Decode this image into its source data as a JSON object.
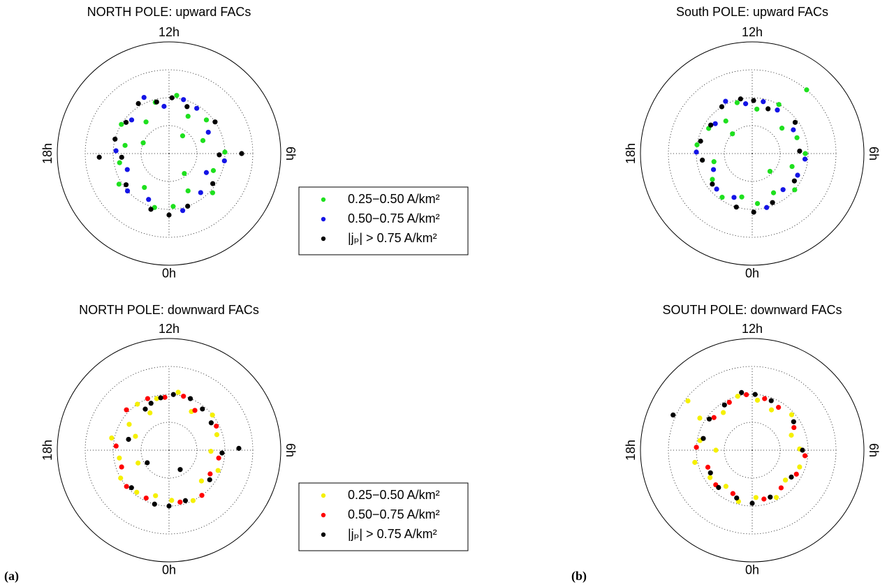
{
  "chart_data": [
    {
      "type": "scatter",
      "projection": "polar",
      "title": "NORTH POLE: upward FACs",
      "xlim": [
        0,
        24
      ],
      "xticks": [
        {
          "value": 12,
          "label": "12h"
        },
        {
          "value": 6,
          "label": "6h"
        },
        {
          "value": 0,
          "label": "0h"
        },
        {
          "value": 18,
          "label": "18h"
        }
      ],
      "ylim": [
        0,
        40
      ],
      "yticks": [
        10,
        20,
        30
      ],
      "grid": true,
      "legend": "right",
      "series": [
        {
          "name": "0.25−0.50 A/km²",
          "color": "#1ee01e",
          "x": [
            0.3,
            1.8,
            3.2,
            4.6,
            6.1,
            7.4,
            8.8,
            10.2,
            11.5,
            13.0,
            14.4,
            15.9,
            17.3,
            18.7,
            20.1,
            21.6,
            23.0,
            2.5,
            9.5,
            16.5
          ],
          "values": [
            19,
            15,
            21,
            17,
            20,
            13,
            18,
            15,
            21,
            19,
            14,
            20,
            16,
            18,
            21,
            15,
            20,
            9,
            8,
            10
          ]
        },
        {
          "name": "0.50−0.75 A/km²",
          "color": "#1414e6",
          "x": [
            0.9,
            2.6,
            4.2,
            5.5,
            7.9,
            9.9,
            11.0,
            12.4,
            13.6,
            15.2,
            17.8,
            19.4,
            20.8,
            22.4
          ],
          "values": [
            21,
            18,
            15,
            20,
            16,
            19,
            20,
            17,
            22,
            18,
            19,
            16,
            20,
            18
          ]
        },
        {
          "name": "|jₚ| > 0.75  A/km²",
          "color": "#000000",
          "x": [
            0.0,
            1.3,
            3.7,
            5.9,
            8.3,
            10.6,
            11.8,
            12.9,
            14.1,
            15.6,
            17.0,
            18.3,
            20.4,
            22.8,
            6.0,
            18.2
          ],
          "values": [
            22,
            20,
            19,
            18,
            20,
            18,
            20,
            19,
            21,
            19,
            20,
            17,
            19,
            21,
            26,
            25
          ]
        }
      ]
    },
    {
      "type": "scatter",
      "projection": "polar",
      "title": "South POLE: upward FACs",
      "xlim": [
        0,
        24
      ],
      "xticks": [
        {
          "value": 12,
          "label": "12h"
        },
        {
          "value": 6,
          "label": "6h"
        },
        {
          "value": 0,
          "label": "0h"
        },
        {
          "value": 18,
          "label": "18h"
        }
      ],
      "ylim": [
        0,
        40
      ],
      "yticks": [
        10,
        20,
        30
      ],
      "grid": true,
      "series": [
        {
          "color": "#1ee01e",
          "x": [
            0.4,
            1.9,
            3.3,
            4.8,
            6.0,
            7.3,
            8.7,
            10.1,
            11.6,
            13.1,
            14.6,
            16.0,
            17.4,
            18.8,
            20.2,
            21.7,
            23.1,
            9.3,
            3.0,
            15.0
          ],
          "values": [
            18,
            16,
            20,
            15,
            19,
            17,
            14,
            20,
            16,
            19,
            15,
            18,
            20,
            14,
            17,
            19,
            16,
            30,
            9,
            10
          ]
        },
        {
          "color": "#1414e6",
          "x": [
            1.0,
            2.7,
            4.3,
            5.6,
            8.0,
            10.0,
            11.2,
            12.5,
            13.8,
            15.4,
            17.9,
            19.5,
            21.0,
            22.5
          ],
          "values": [
            20,
            17,
            18,
            19,
            17,
            18,
            19,
            18,
            21,
            17,
            20,
            15,
            18,
            17
          ]
        },
        {
          "color": "#000000",
          "x": [
            0.1,
            1.5,
            3.8,
            6.2,
            8.4,
            10.7,
            11.9,
            12.8,
            14.2,
            15.7,
            17.1,
            18.5,
            20.5,
            22.9
          ],
          "values": [
            21,
            19,
            18,
            17,
            19,
            17,
            19,
            20,
            20,
            18,
            19,
            18,
            18,
            20
          ]
        }
      ]
    },
    {
      "type": "scatter",
      "projection": "polar",
      "title": "NORTH POLE: downward FACs",
      "xlim": [
        0,
        24
      ],
      "xticks": [
        {
          "value": 12,
          "label": "12h"
        },
        {
          "value": 6,
          "label": "6h"
        },
        {
          "value": 0,
          "label": "0h"
        },
        {
          "value": 18,
          "label": "18h"
        }
      ],
      "ylim": [
        0,
        40
      ],
      "yticks": [
        10,
        20,
        30
      ],
      "grid": true,
      "legend": "right",
      "series": [
        {
          "name": "0.25−0.50 A/km²",
          "color": "#f5f000",
          "x": [
            0.2,
            1.7,
            3.1,
            4.5,
            5.9,
            7.2,
            8.6,
            10.0,
            11.4,
            12.9,
            14.3,
            15.8,
            17.2,
            18.6,
            20.0,
            21.5,
            22.9,
            16.5,
            19.5,
            13.8
          ],
          "values": [
            18,
            20,
            16,
            19,
            15,
            18,
            20,
            16,
            21,
            19,
            20,
            17,
            21,
            18,
            20,
            19,
            17,
            13,
            12,
            15
          ]
        },
        {
          "name": "0.50−0.75 A/km²",
          "color": "#ff0000",
          "x": [
            0.8,
            2.4,
            4.0,
            5.4,
            7.8,
            9.8,
            11.0,
            12.3,
            13.5,
            15.1,
            17.7,
            19.3,
            20.7,
            22.3
          ],
          "values": [
            19,
            20,
            17,
            18,
            19,
            17,
            20,
            19,
            20,
            21,
            19,
            18,
            20,
            19
          ]
        },
        {
          "name": "|jₚ| > 0.75  A/km²",
          "color": "#000000",
          "x": [
            0.0,
            1.2,
            3.6,
            5.8,
            8.2,
            9.4,
            10.5,
            11.7,
            12.6,
            13.4,
            14.0,
            17.0,
            21.0,
            23.0,
            6.1,
            2.0,
            20.0
          ],
          "values": [
            20,
            19,
            18,
            19,
            18,
            19,
            20,
            20,
            19,
            18,
            17,
            15,
            19,
            20,
            25,
            8,
            9
          ]
        }
      ]
    },
    {
      "type": "scatter",
      "projection": "polar",
      "title": "SOUTH POLE: downward FACs",
      "xlim": [
        0,
        24
      ],
      "xticks": [
        {
          "value": 12,
          "label": "12h"
        },
        {
          "value": 6,
          "label": "6h"
        },
        {
          "value": 0,
          "label": "0h"
        },
        {
          "value": 18,
          "label": "18h"
        }
      ],
      "ylim": [
        0,
        40
      ],
      "yticks": [
        10,
        20,
        30
      ],
      "grid": true,
      "series": [
        {
          "color": "#f5f000",
          "x": [
            0.3,
            1.8,
            3.2,
            4.7,
            6.1,
            7.4,
            8.8,
            10.3,
            11.6,
            13.0,
            14.5,
            15.9,
            17.3,
            18.8,
            20.2,
            21.6,
            23.0,
            15.5,
            18.0
          ],
          "values": [
            17,
            19,
            16,
            18,
            17,
            15,
            19,
            16,
            18,
            20,
            17,
            22,
            19,
            21,
            18,
            16,
            19,
            29,
            13
          ]
        },
        {
          "color": "#ff0000",
          "x": [
            0.9,
            2.5,
            4.1,
            5.6,
            7.9,
            9.9,
            11.1,
            12.4,
            13.7,
            15.3,
            17.8,
            19.4,
            20.9,
            22.4
          ],
          "values": [
            18,
            17,
            18,
            19,
            17,
            18,
            19,
            20,
            19,
            18,
            20,
            17,
            18,
            17
          ]
        },
        {
          "color": "#000000",
          "x": [
            0.0,
            1.4,
            3.7,
            6.0,
            8.3,
            10.6,
            11.8,
            12.7,
            14.1,
            15.6,
            17.1,
            19.9,
            21.2,
            22.8,
            16.4
          ],
          "values": [
            19,
            18,
            17,
            18,
            18,
            19,
            20,
            21,
            19,
            19,
            18,
            17,
            18,
            18,
            31
          ]
        }
      ]
    }
  ],
  "panel_labels": [
    "(a)",
    "(b)"
  ]
}
